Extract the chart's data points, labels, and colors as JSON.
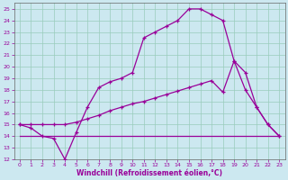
{
  "bg_color": "#cce8f0",
  "grid_color": "#99ccbb",
  "line_color": "#990099",
  "xlabel": "Windchill (Refroidissement éolien,°C)",
  "ylim": [
    12,
    25.5
  ],
  "xlim": [
    -0.5,
    23.5
  ],
  "yticks": [
    12,
    13,
    14,
    15,
    16,
    17,
    18,
    19,
    20,
    21,
    22,
    23,
    24,
    25
  ],
  "xticks": [
    0,
    1,
    2,
    3,
    4,
    5,
    6,
    7,
    8,
    9,
    10,
    11,
    12,
    13,
    14,
    15,
    16,
    17,
    18,
    19,
    20,
    21,
    22,
    23
  ],
  "line1_x": [
    0,
    1,
    2,
    3,
    4,
    5,
    6,
    7,
    8,
    9,
    10,
    11,
    12,
    13,
    14,
    15,
    16,
    17,
    18,
    19,
    20,
    21,
    22,
    23
  ],
  "line1_y": [
    15,
    14.7,
    14.0,
    13.8,
    12.0,
    14.3,
    16.5,
    18.2,
    18.7,
    19.0,
    19.5,
    22.5,
    23.0,
    23.5,
    24.0,
    25.0,
    25.0,
    24.5,
    24.0,
    20.5,
    18.0,
    16.5,
    15.0,
    14.0
  ],
  "line2_x": [
    0,
    1,
    2,
    3,
    4,
    5,
    6,
    7,
    8,
    9,
    10,
    11,
    12,
    13,
    14,
    15,
    16,
    17,
    18,
    19,
    20,
    21,
    22,
    23
  ],
  "line2_y": [
    15.0,
    15.0,
    15.0,
    15.0,
    15.0,
    15.2,
    15.5,
    15.8,
    16.2,
    16.5,
    16.8,
    17.0,
    17.3,
    17.6,
    17.9,
    18.2,
    18.5,
    18.8,
    17.8,
    20.5,
    19.5,
    16.5,
    15.0,
    14.0
  ],
  "line3_x": [
    0,
    4,
    5,
    18,
    22,
    23
  ],
  "line3_y": [
    14.0,
    14.0,
    14.0,
    14.0,
    14.0,
    14.0
  ]
}
